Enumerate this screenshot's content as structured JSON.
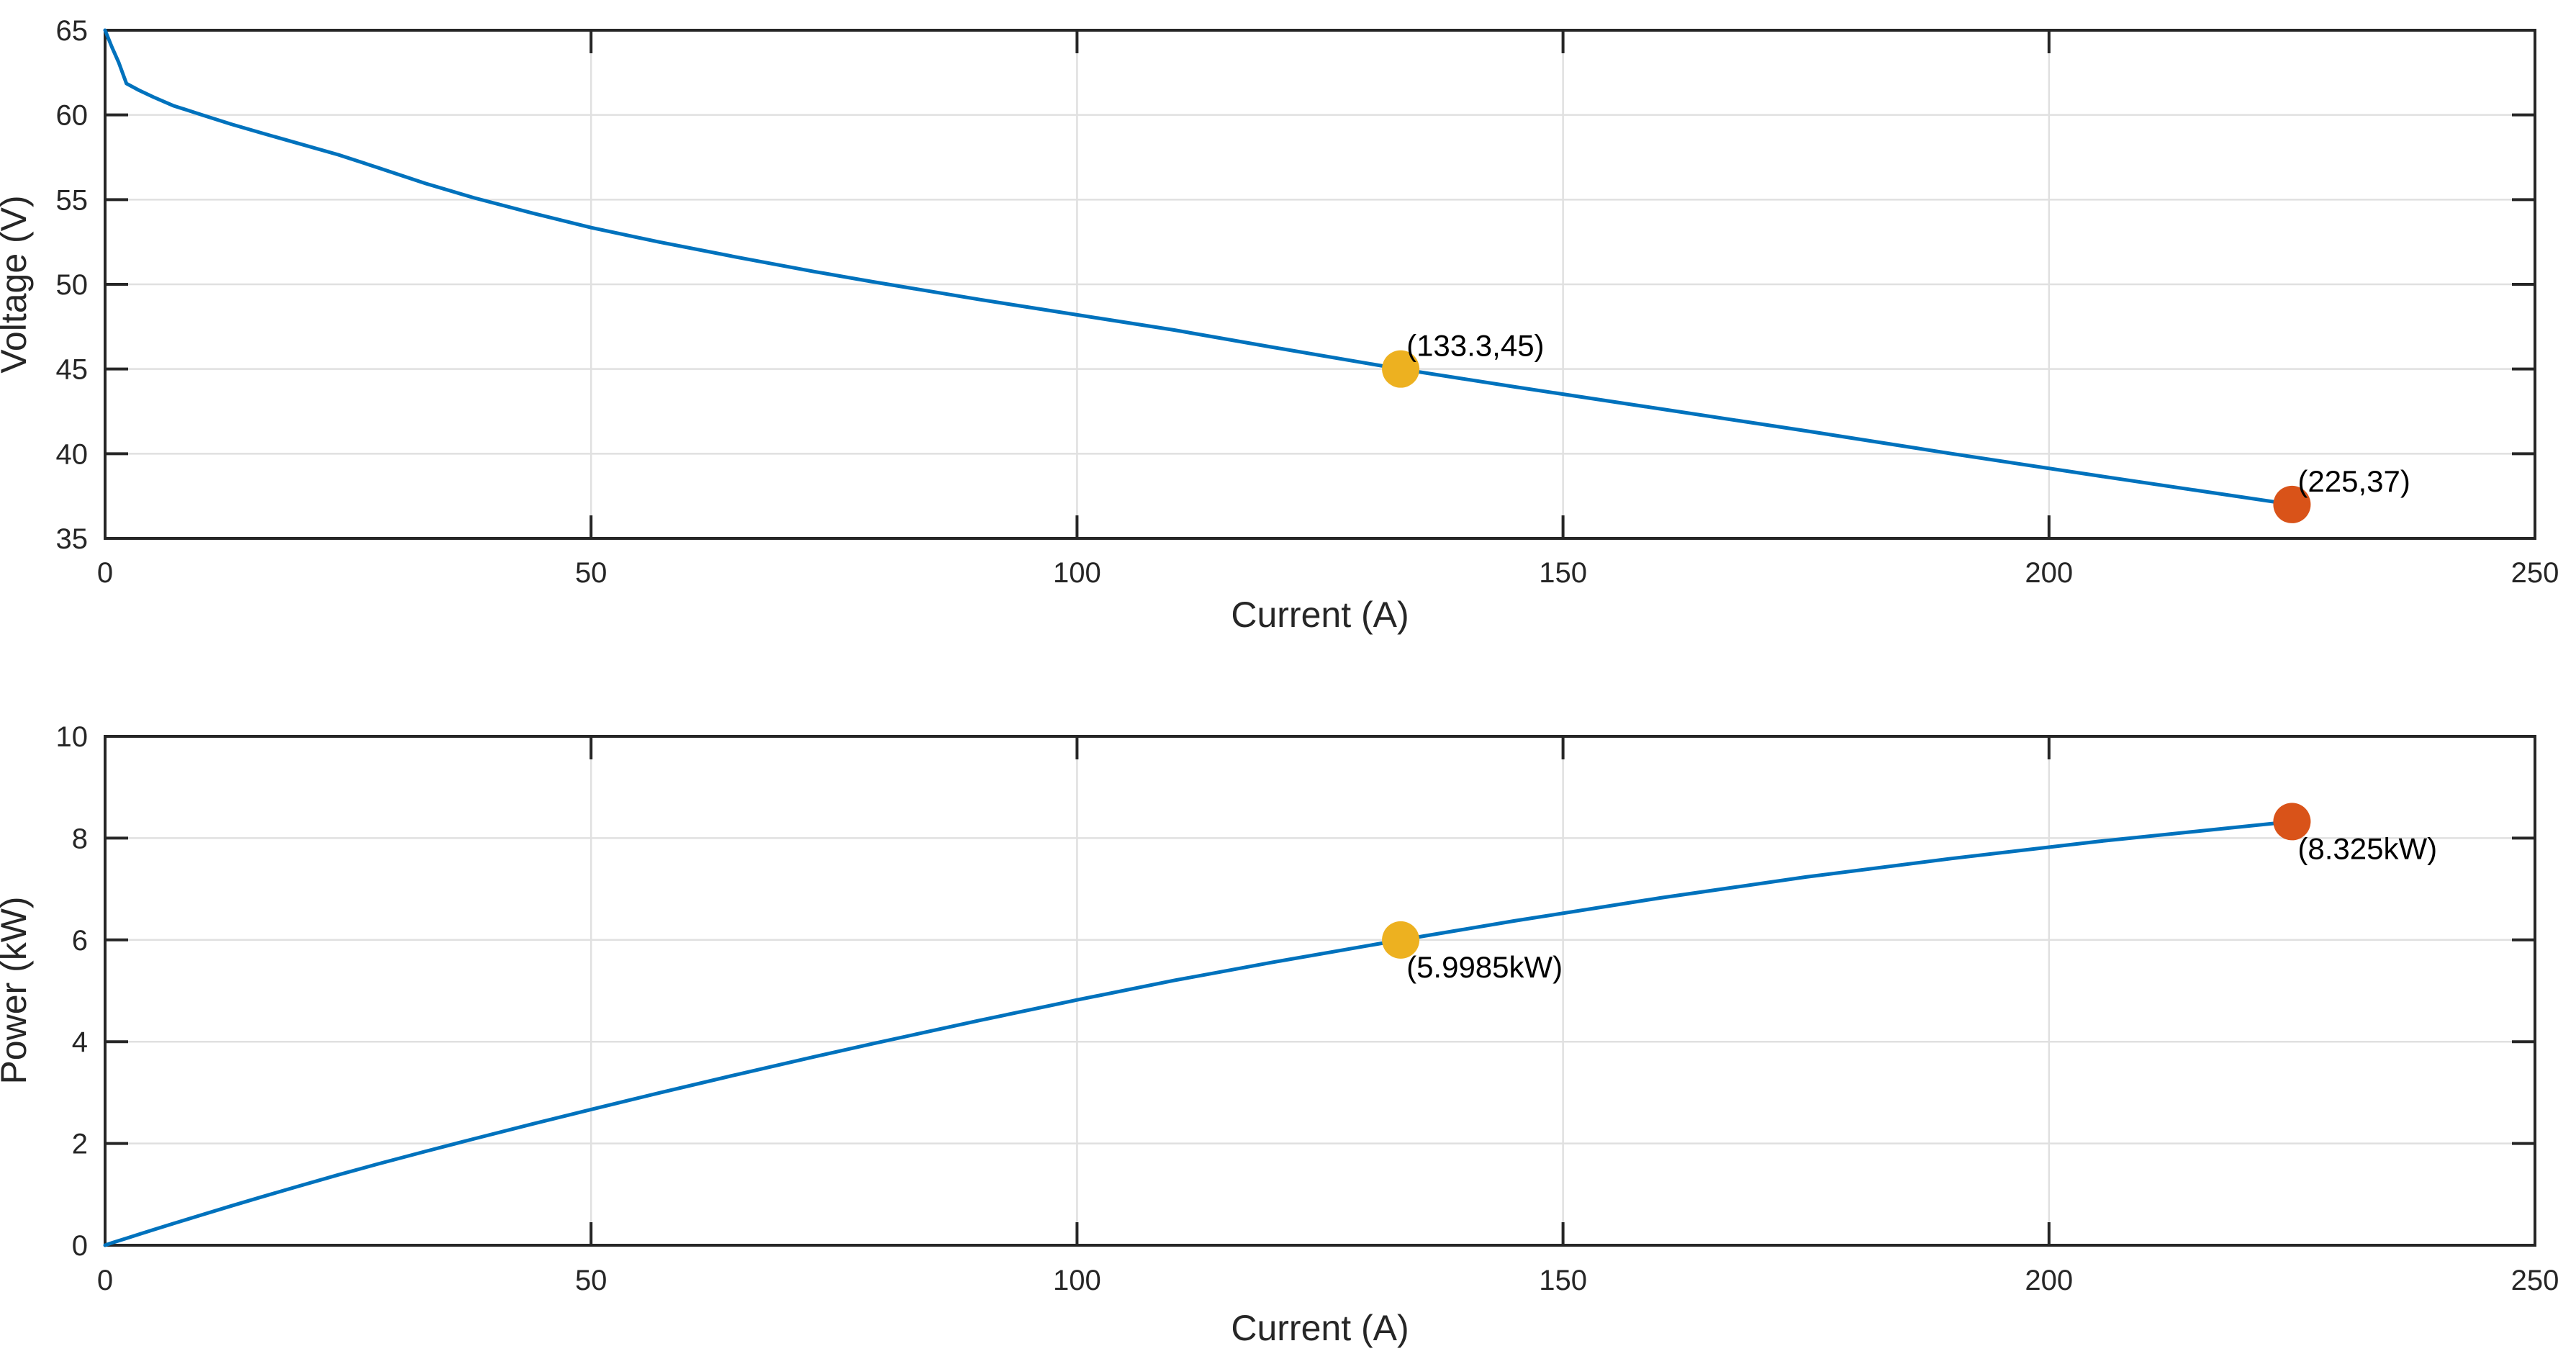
{
  "figure": {
    "background": "#ffffff",
    "axes_box_color": "#262626",
    "grid_color": "#e0e0e0",
    "line_color": "#0072bd",
    "nominal_marker_color": "#edb120",
    "max_marker_color": "#d95319"
  },
  "chart_data": [
    {
      "type": "line",
      "title": "",
      "xlabel": "Current (A)",
      "ylabel": "Voltage (V)",
      "xlim": [
        0,
        250
      ],
      "ylim": [
        35,
        65
      ],
      "xticks": [
        0,
        50,
        100,
        150,
        200,
        250
      ],
      "xtick_labels": [
        "0",
        "50",
        "100",
        "150",
        "200",
        "250"
      ],
      "yticks": [
        35,
        40,
        45,
        50,
        55,
        60,
        65
      ],
      "ytick_labels": [
        "35",
        "40",
        "45",
        "50",
        "55",
        "60",
        "65"
      ],
      "grid": true,
      "legend": "none",
      "series": [
        {
          "name": "stack-voltage-curve",
          "color": "#0072bd",
          "x": [
            0,
            0.7,
            1.4,
            2.2,
            3.5,
            5,
            7,
            10,
            13,
            16,
            20,
            24,
            28,
            33,
            38,
            44,
            50,
            57,
            65,
            73,
            79,
            90,
            100,
            110,
            120,
            133.3,
            145,
            160,
            175,
            190,
            205,
            225
          ],
          "y": [
            65,
            64.0,
            63.1,
            61.85,
            61.45,
            61.05,
            60.55,
            60.0,
            59.45,
            58.95,
            58.3,
            57.65,
            56.9,
            55.95,
            55.1,
            54.2,
            53.35,
            52.5,
            51.6,
            50.75,
            50.15,
            49.1,
            48.2,
            47.3,
            46.3,
            45.0,
            43.95,
            42.65,
            41.35,
            40.0,
            38.7,
            37.0
          ]
        }
      ],
      "points": [
        {
          "x": 133.3,
          "y": 45,
          "label": "(133.3,45)",
          "color": "#edb120",
          "label_pos": "above",
          "name": "nominal-operating-point-voltage"
        },
        {
          "x": 225,
          "y": 37,
          "label": "(225,37)",
          "color": "#d95319",
          "label_pos": "above",
          "name": "max-operating-point-voltage"
        }
      ]
    },
    {
      "type": "line",
      "title": "",
      "xlabel": "Current (A)",
      "ylabel": "Power (kW)",
      "xlim": [
        0,
        250
      ],
      "ylim": [
        0,
        10
      ],
      "xticks": [
        0,
        50,
        100,
        150,
        200,
        250
      ],
      "xtick_labels": [
        "0",
        "50",
        "100",
        "150",
        "200",
        "250"
      ],
      "yticks": [
        0,
        2,
        4,
        6,
        8,
        10
      ],
      "ytick_labels": [
        "0",
        "2",
        "4",
        "6",
        "8",
        "10"
      ],
      "grid": true,
      "legend": "none",
      "series": [
        {
          "name": "stack-power-curve",
          "color": "#0072bd",
          "x": [
            0,
            0.7,
            1.4,
            2.2,
            3.5,
            5,
            7,
            10,
            13,
            16,
            20,
            24,
            28,
            33,
            38,
            44,
            50,
            57,
            65,
            73,
            79,
            90,
            100,
            110,
            120,
            133.3,
            145,
            160,
            175,
            190,
            205,
            225
          ],
          "y": [
            0,
            0.045,
            0.088,
            0.136,
            0.215,
            0.305,
            0.424,
            0.6,
            0.773,
            0.943,
            1.166,
            1.384,
            1.593,
            1.846,
            2.094,
            2.385,
            2.668,
            2.993,
            3.354,
            3.705,
            3.962,
            4.419,
            4.82,
            5.203,
            5.556,
            5.9985,
            6.373,
            6.824,
            7.236,
            7.6,
            7.934,
            8.325
          ]
        }
      ],
      "points": [
        {
          "x": 133.3,
          "y": 5.9985,
          "label": "(5.9985kW)",
          "color": "#edb120",
          "label_pos": "below",
          "name": "nominal-operating-point-power"
        },
        {
          "x": 225,
          "y": 8.325,
          "label": "(8.325kW)",
          "color": "#d95319",
          "label_pos": "below",
          "name": "max-operating-point-power"
        }
      ]
    }
  ]
}
